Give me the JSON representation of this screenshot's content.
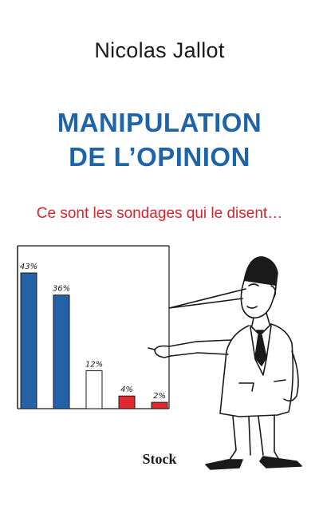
{
  "cover": {
    "author": "Nicolas Jallot",
    "title_line1": "MANIPULATION",
    "title_line2": "DE L’OPINION",
    "subtitle": "Ce sont les sondages qui le disent…",
    "publisher": "Stock"
  },
  "colors": {
    "title": "#1f64a8",
    "subtitle": "#d9232d",
    "bar_blue": "#2461a6",
    "bar_white": "#ffffff",
    "bar_red": "#e02a2f"
  },
  "chart_data": {
    "type": "bar",
    "categories": [
      "",
      "",
      "",
      "",
      ""
    ],
    "values": [
      43,
      36,
      12,
      4,
      2
    ],
    "value_labels": [
      "43%",
      "36%",
      "12%",
      "4%",
      "2%"
    ],
    "bar_colors": [
      "#2461a6",
      "#2461a6",
      "#ffffff",
      "#e02a2f",
      "#e02a2f"
    ],
    "title": "",
    "xlabel": "",
    "ylabel": "",
    "grid": false
  }
}
